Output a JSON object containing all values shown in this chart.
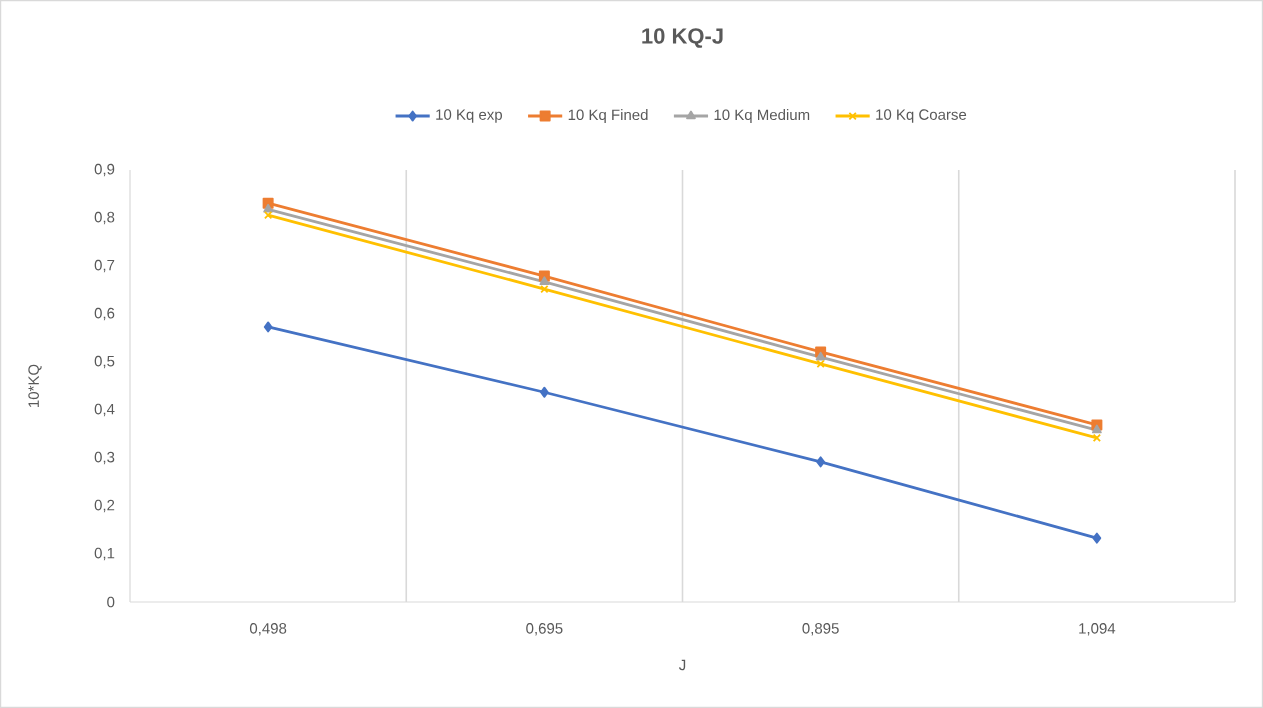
{
  "chart_data": {
    "type": "line",
    "title": "10 KQ-J",
    "xlabel": "J",
    "ylabel": "10*KQ",
    "categories": [
      "0,498",
      "0,695",
      "0,895",
      "1,094"
    ],
    "series": [
      {
        "name": "10 Kq exp",
        "color": "#4472c4",
        "marker": "diamond",
        "values": [
          0.573,
          0.437,
          0.292,
          0.133
        ]
      },
      {
        "name": "10 Kq Fined",
        "color": "#ed7d31",
        "marker": "square",
        "values": [
          0.831,
          0.679,
          0.521,
          0.369
        ]
      },
      {
        "name": "10 Kq Medium",
        "color": "#a5a5a5",
        "marker": "triangle",
        "values": [
          0.818,
          0.667,
          0.51,
          0.358
        ]
      },
      {
        "name": "10 Kq Coarse",
        "color": "#ffc000",
        "marker": "cross",
        "values": [
          0.806,
          0.652,
          0.496,
          0.342
        ]
      }
    ],
    "ylim": [
      0,
      0.9
    ],
    "yticks": [
      {
        "value": 0,
        "label": "0"
      },
      {
        "value": 0.1,
        "label": "0,1"
      },
      {
        "value": 0.2,
        "label": "0,2"
      },
      {
        "value": 0.3,
        "label": "0,3"
      },
      {
        "value": 0.4,
        "label": "0,4"
      },
      {
        "value": 0.5,
        "label": "0,5"
      },
      {
        "value": 0.6,
        "label": "0,6"
      },
      {
        "value": 0.7,
        "label": "0,7"
      },
      {
        "value": 0.8,
        "label": "0,8"
      },
      {
        "value": 0.9,
        "label": "0,9"
      }
    ],
    "grid": "x",
    "legend": "top",
    "line_style": "solid"
  }
}
